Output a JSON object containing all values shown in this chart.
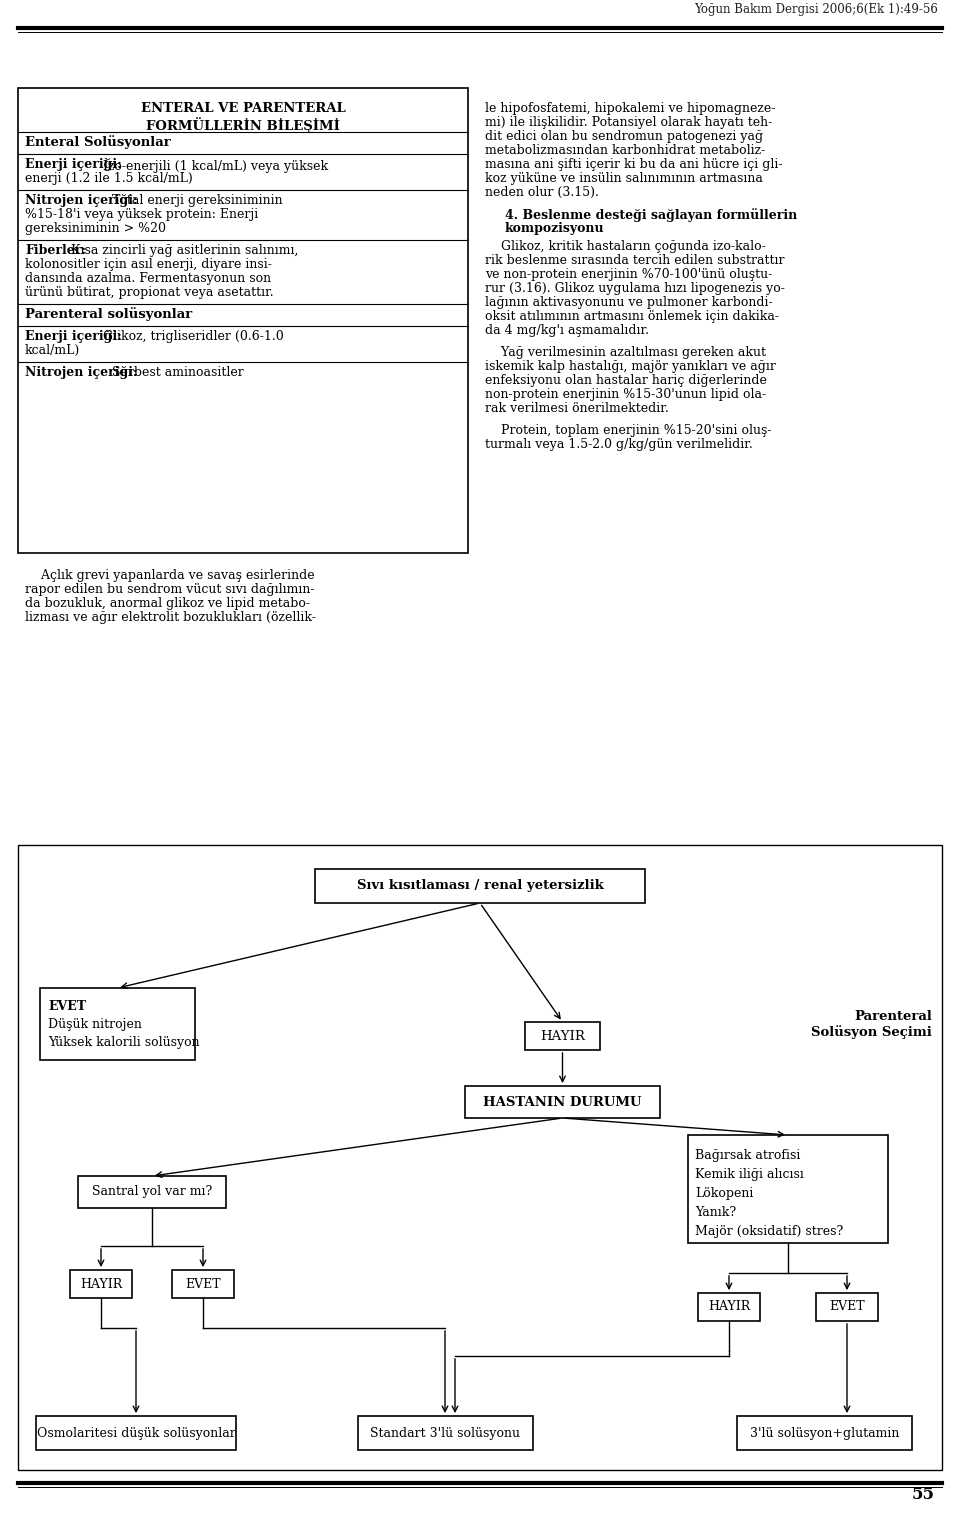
{
  "header_text": "Yoğun Bakım Dergisi 2006;6(Ek 1):49-56",
  "page_number": "55",
  "background_color": "#ffffff",
  "text_color": "#000000",
  "left_box": {
    "title1": "ENTERAL VE PARENTERAL",
    "title2": "FORMÜLLERİN BİLEŞİMİ",
    "rows": [
      {
        "type": "header",
        "text": "Enteral Solüsyonlar"
      },
      {
        "type": "boldnormal",
        "bold": "Enerji içeriği:",
        "normal": " İzo-enerjili (1 kcal/mL) veya yüksek enerji (1.2 ile 1.5 kcal/mL)"
      },
      {
        "type": "boldnormal",
        "bold": "Nitrojen içeriği:",
        "normal": " Total enerji gereksiniminin %15-18'i veya yüksek protein: Enerji gereksiniminin > %20"
      },
      {
        "type": "boldnormal",
        "bold": "Fiberler:",
        "normal": " Kısa zincirli yağ asitlerinin salınımı, kolonositler için asıl enerji, diyare insidansında azalma. Fermentasyonun son ürünü bütirat, propionat veya asetattır."
      },
      {
        "type": "header",
        "text": "Parenteral solüsyonlar"
      },
      {
        "type": "boldnormal",
        "bold": "Enerji içeriği:",
        "normal": " Glikoz, trigliseridler (0.6-1.0 kcal/mL)"
      },
      {
        "type": "boldnormal",
        "bold": "Nitrojen içeriği:",
        "normal": " Serbest aminoasitler"
      }
    ]
  },
  "right_text": [
    "le hipofosfatemi, hipokalemi ve hipomagneze-",
    "mi) ile ilişkilidir. Potansiyel olarak hayatı teh-",
    "dit edici olan bu sendromun patogenezi yağ",
    "metabolizmasından karbonhidrat metaboliz-",
    "masına ani şifti içerir ki bu da ani hücre içi gli-",
    "koz yüküne ve insülin salınımının artmasına",
    "neden olur (3.15)."
  ],
  "right_bold": "    4. Beslenme desteği sağlayan formüllerin kompozisyonu",
  "right_text2": [
    "    Glikoz, kritik hastaların çoğunda izo-kalo-",
    "rik beslenme sırasında tercih edilen substrattır",
    "ve non-protein enerjinin %70-100'ünü oluştu-",
    "rur (3.16). Glikoz uygulama hızı lipogenezis yo-",
    "lağının aktivasyonunu ve pulmoner karbondi-",
    "oksit atılımının artmasını önlemek için dakika-",
    "da 4 mg/kg'ı aşmamalıdır."
  ],
  "right_text3": [
    "    Yağ verilmesinin azaltılması gereken akut",
    "iskemik kalp hastalığı, majör yanıkları ve ağır",
    "enfeksiyonu olan hastalar hariç diğerlerinde",
    "non-protein enerjinin %15-30'unun lipid ola-",
    "rak verilmesi önerilmektedir."
  ],
  "right_text4": [
    "    Protein, toplam enerjinin %15-20'sini oluş-",
    "turmalı veya 1.5-2.0 g/kg/gün verilmelidir."
  ],
  "bottom_left_text": [
    "    Açlık grevi yapanlarda ve savaş esirlerinde",
    "rapor edilen bu sendrom vücut sıvı dağılımın-",
    "da bozukluk, anormal glikoz ve lipid metabo-",
    "lizması ve ağır elektrolit bozuklukları (özellik-"
  ],
  "flowchart": {
    "top_box": "Sıvı kısıtlaması / renal yetersizlik",
    "evet_box_lines": [
      "EVET",
      "Düşük nitrojen",
      "Yüksek kalorili solüsyon"
    ],
    "hayir_box": "HAYIR",
    "hastanin_box": "HASTANIN DURUMU",
    "side_label": "Parenteral\nSolüsyon Seçimi",
    "santral_box": "Santral yol var mı?",
    "cond_box_lines": [
      "Bağırsak atrofisi",
      "Kemik iliği alıcısı",
      "Lökopeni",
      "Yanık?",
      "Majör (oksidatif) stres?"
    ],
    "ll_box": "HAYIR",
    "lm_box": "EVET",
    "rl_box": "HAYIR",
    "rr_box": "EVET",
    "bottom_l": "Osmolaritesi düşük solüsyonlar",
    "bottom_m": "Standart 3'lü solüsyonu",
    "bottom_r": "3'lü solüsyon+glutamin"
  }
}
